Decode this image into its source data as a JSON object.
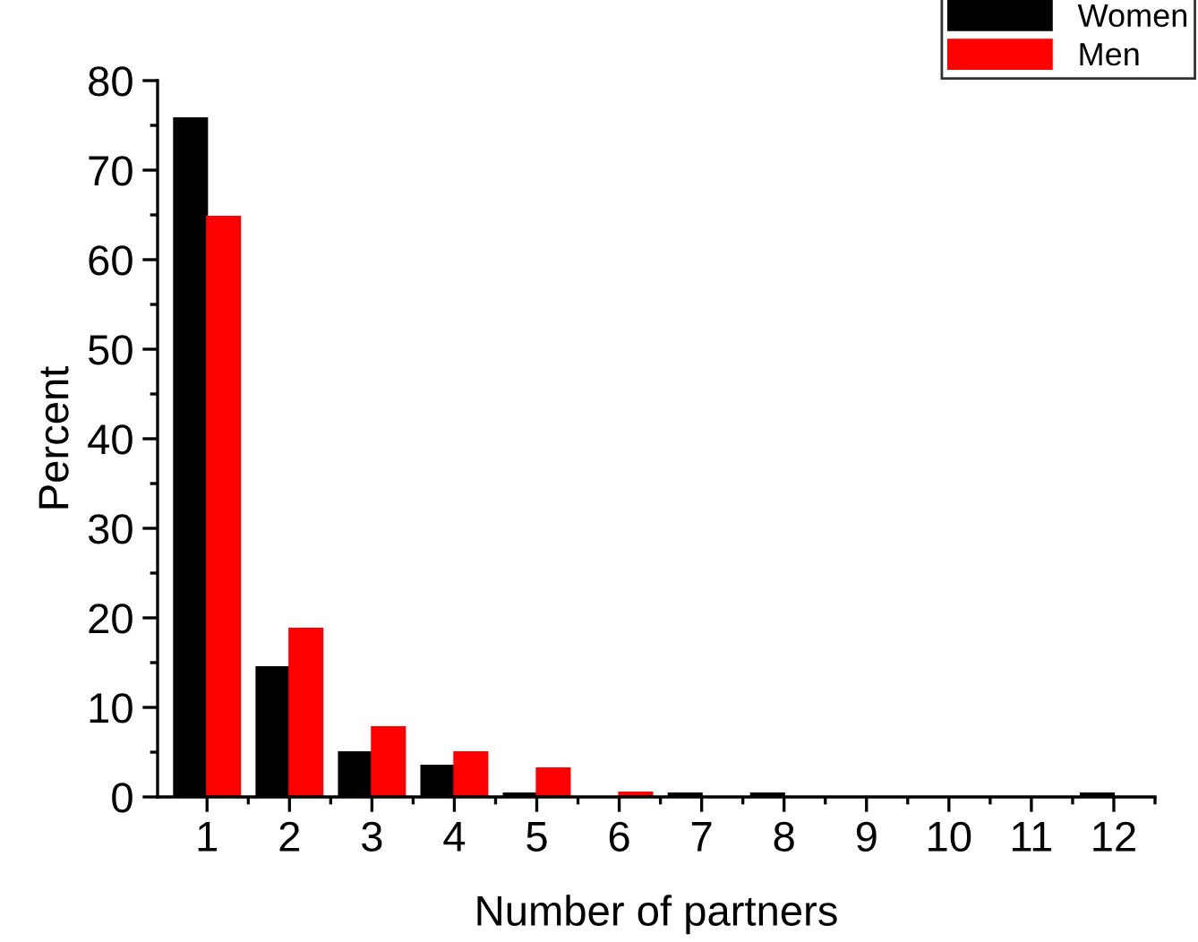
{
  "chart_data": {
    "type": "bar",
    "xlabel": "Number of partners",
    "ylabel": "Percent",
    "categories": [
      "1",
      "2",
      "3",
      "4",
      "5",
      "6",
      "7",
      "8",
      "9",
      "10",
      "11",
      "12"
    ],
    "series": [
      {
        "name": "Women",
        "color": "#000000",
        "values": [
          75.8,
          14.5,
          5.0,
          3.5,
          0.4,
          0,
          0.4,
          0.4,
          0,
          0,
          0,
          0.4
        ]
      },
      {
        "name": "Men",
        "color": "#ff0000",
        "values": [
          64.8,
          18.8,
          7.8,
          5.0,
          3.2,
          0.5,
          0,
          0,
          0,
          0,
          0,
          0
        ]
      }
    ],
    "ylim": [
      0,
      80
    ],
    "yticks": [
      0,
      10,
      20,
      30,
      40,
      50,
      60,
      70,
      80
    ],
    "grid": false,
    "legend": "top right"
  }
}
